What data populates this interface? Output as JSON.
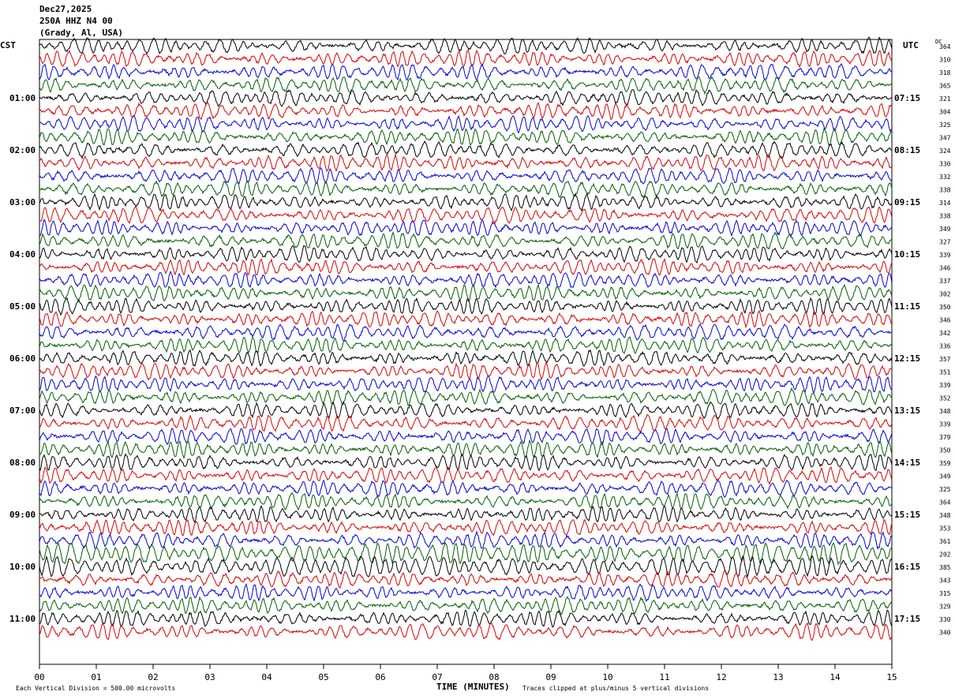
{
  "header": {
    "date": "Dec27,2025",
    "station": "250A HHZ N4 00",
    "location": "(Grady, Al, USA)"
  },
  "timezones": {
    "left": "CST",
    "right": "UTC",
    "dc": "DC"
  },
  "footer": {
    "scale": "Each Vertical Division =  500.00 microvolts",
    "clip": "Traces clipped at plus/minus 5 vertical divisions"
  },
  "colors": {
    "trace_cycle": [
      "#000000",
      "#e00000",
      "#0000e0",
      "#006000"
    ]
  },
  "chart_data": {
    "type": "helicorder",
    "xlabel": "TIME (MINUTES)",
    "xlim": [
      0,
      15
    ],
    "x_ticks": [
      "00",
      "01",
      "02",
      "03",
      "04",
      "05",
      "06",
      "07",
      "08",
      "09",
      "10",
      "11",
      "12",
      "13",
      "14",
      "15"
    ],
    "left_hour_labels": [
      "01:00",
      "02:00",
      "03:00",
      "04:00",
      "05:00",
      "06:00",
      "07:00",
      "08:00",
      "09:00",
      "10:00",
      "11:00"
    ],
    "right_hour_labels": [
      "07:15",
      "08:15",
      "09:15",
      "10:15",
      "11:15",
      "12:15",
      "13:15",
      "14:15",
      "15:15",
      "16:15",
      "17:15"
    ],
    "dc_offsets": [
      364,
      310,
      318,
      365,
      321,
      304,
      325,
      347,
      324,
      330,
      332,
      338,
      314,
      338,
      349,
      327,
      339,
      346,
      337,
      302,
      350,
      346,
      342,
      336,
      357,
      351,
      339,
      352,
      348,
      339,
      379,
      350,
      359,
      349,
      325,
      364,
      348,
      353,
      361,
      202,
      385,
      343,
      315,
      329,
      330,
      340
    ]
  }
}
